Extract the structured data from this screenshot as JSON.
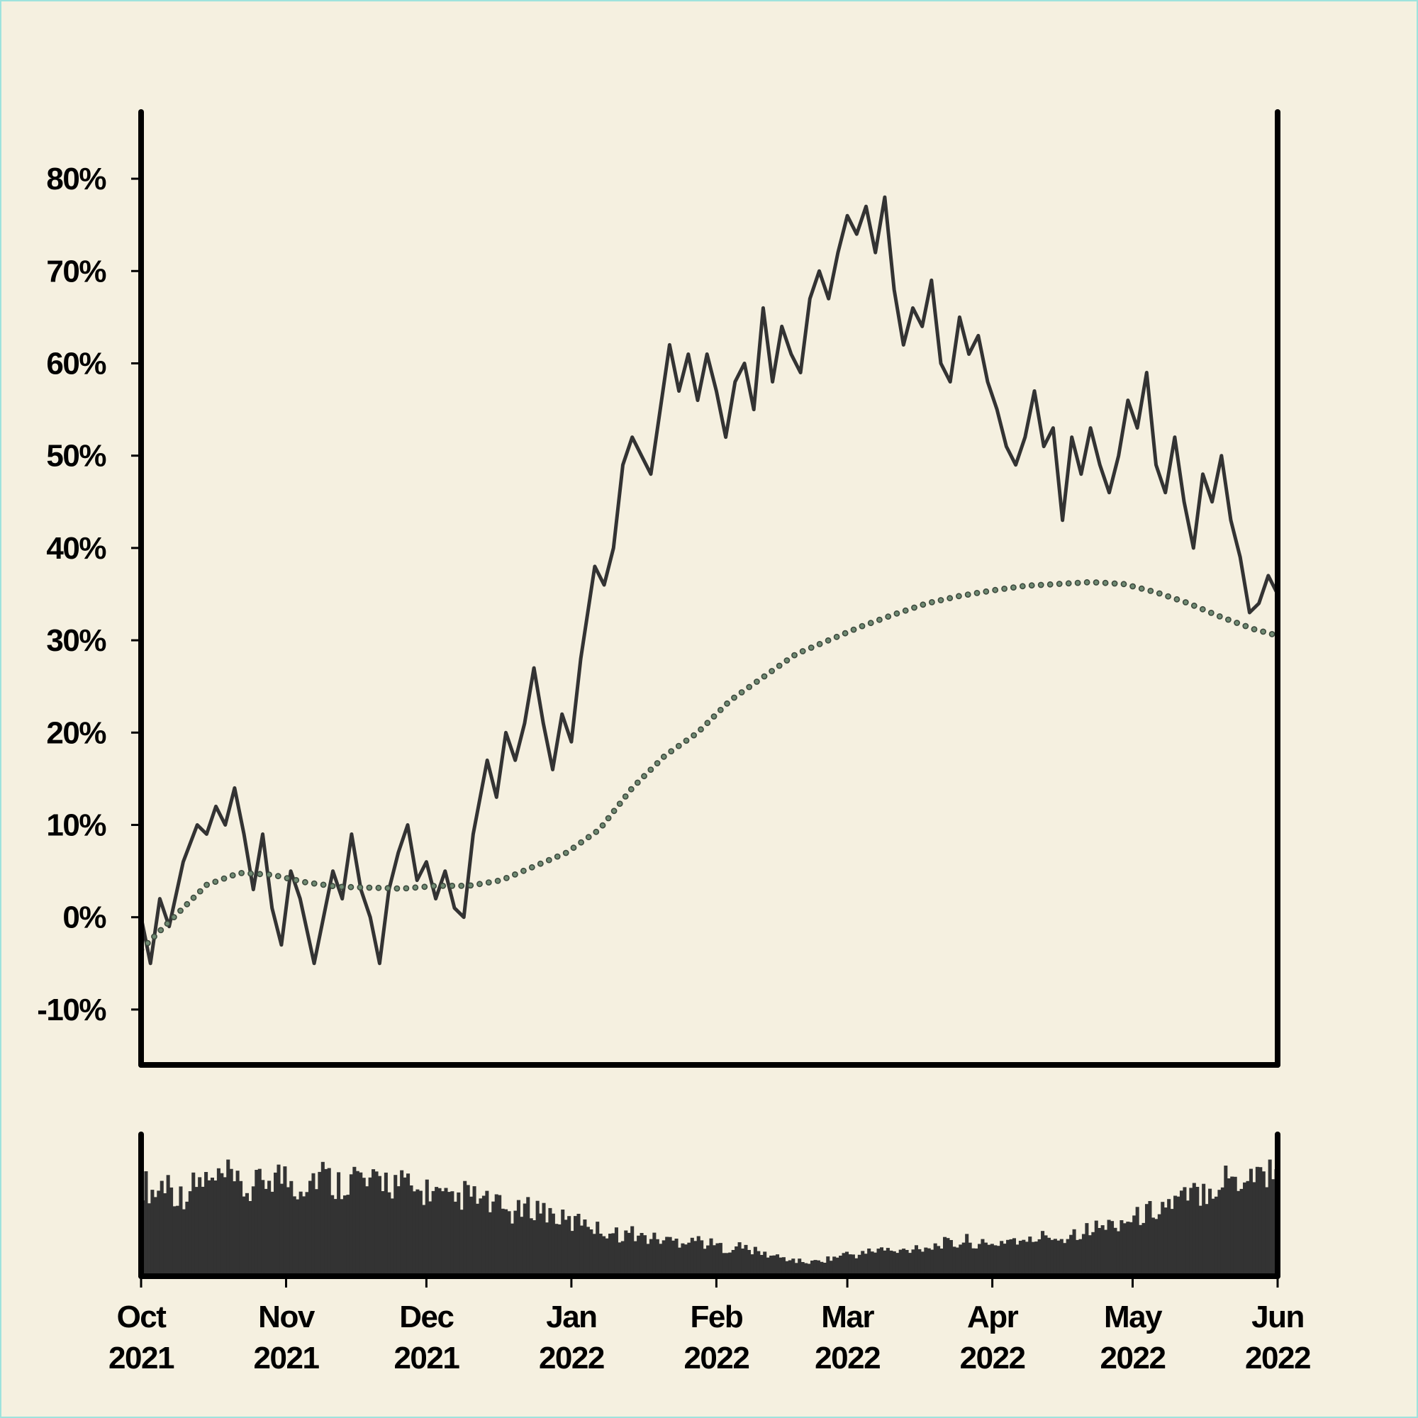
{
  "colors": {
    "background": "#f5f0e0",
    "price_line": "#333333",
    "trend_dots": "#3d4a3e",
    "volume_bars": "#333333",
    "axes": "#000000"
  },
  "chart_data": {
    "type": "line",
    "title": "",
    "xlabel": "",
    "ylabel": "",
    "grid": false,
    "legend": "none",
    "x_range": [
      "2021-10-01",
      "2022-06-01"
    ],
    "ylim": [
      -0.16,
      0.84
    ],
    "y_tick_values": [
      -0.1,
      0,
      0.1,
      0.2,
      0.3,
      0.4,
      0.5,
      0.6,
      0.7,
      0.8
    ],
    "y_tick_labels": [
      "-10%",
      "0%",
      "10%",
      "20%",
      "30%",
      "40%",
      "50%",
      "60%",
      "70%",
      "80%"
    ],
    "x_ticks": [
      {
        "date": "2021-10-01",
        "month": "Oct",
        "year": "2021"
      },
      {
        "date": "2021-11-01",
        "month": "Nov",
        "year": "2021"
      },
      {
        "date": "2021-12-01",
        "month": "Dec",
        "year": "2021"
      },
      {
        "date": "2022-01-01",
        "month": "Jan",
        "year": "2022"
      },
      {
        "date": "2022-02-01",
        "month": "Feb",
        "year": "2022"
      },
      {
        "date": "2022-03-01",
        "month": "Mar",
        "year": "2022"
      },
      {
        "date": "2022-04-01",
        "month": "Apr",
        "year": "2022"
      },
      {
        "date": "2022-05-01",
        "month": "May",
        "year": "2022"
      },
      {
        "date": "2022-06-01",
        "month": "Jun",
        "year": "2022"
      }
    ],
    "series": [
      {
        "style": "solid line",
        "points": [
          [
            "2021-10-01",
            0.0
          ],
          [
            "2021-10-03",
            -0.05
          ],
          [
            "2021-10-05",
            0.02
          ],
          [
            "2021-10-07",
            -0.01
          ],
          [
            "2021-10-10",
            0.06
          ],
          [
            "2021-10-13",
            0.1
          ],
          [
            "2021-10-15",
            0.09
          ],
          [
            "2021-10-17",
            0.12
          ],
          [
            "2021-10-19",
            0.1
          ],
          [
            "2021-10-21",
            0.14
          ],
          [
            "2021-10-23",
            0.09
          ],
          [
            "2021-10-25",
            0.03
          ],
          [
            "2021-10-27",
            0.09
          ],
          [
            "2021-10-29",
            0.01
          ],
          [
            "2021-10-31",
            -0.03
          ],
          [
            "2021-11-02",
            0.05
          ],
          [
            "2021-11-04",
            0.02
          ],
          [
            "2021-11-07",
            -0.05
          ],
          [
            "2021-11-09",
            0.0
          ],
          [
            "2021-11-11",
            0.05
          ],
          [
            "2021-11-13",
            0.02
          ],
          [
            "2021-11-15",
            0.09
          ],
          [
            "2021-11-17",
            0.03
          ],
          [
            "2021-11-19",
            0.0
          ],
          [
            "2021-11-21",
            -0.05
          ],
          [
            "2021-11-23",
            0.03
          ],
          [
            "2021-11-25",
            0.07
          ],
          [
            "2021-11-27",
            0.1
          ],
          [
            "2021-11-29",
            0.04
          ],
          [
            "2021-12-01",
            0.06
          ],
          [
            "2021-12-03",
            0.02
          ],
          [
            "2021-12-05",
            0.05
          ],
          [
            "2021-12-07",
            0.01
          ],
          [
            "2021-12-09",
            0.0
          ],
          [
            "2021-12-11",
            0.09
          ],
          [
            "2021-12-14",
            0.17
          ],
          [
            "2021-12-16",
            0.13
          ],
          [
            "2021-12-18",
            0.2
          ],
          [
            "2021-12-20",
            0.17
          ],
          [
            "2021-12-22",
            0.21
          ],
          [
            "2021-12-24",
            0.27
          ],
          [
            "2021-12-26",
            0.21
          ],
          [
            "2021-12-28",
            0.16
          ],
          [
            "2021-12-30",
            0.22
          ],
          [
            "2022-01-01",
            0.19
          ],
          [
            "2022-01-03",
            0.28
          ],
          [
            "2022-01-06",
            0.38
          ],
          [
            "2022-01-08",
            0.36
          ],
          [
            "2022-01-10",
            0.4
          ],
          [
            "2022-01-12",
            0.49
          ],
          [
            "2022-01-14",
            0.52
          ],
          [
            "2022-01-16",
            0.5
          ],
          [
            "2022-01-18",
            0.48
          ],
          [
            "2022-01-20",
            0.55
          ],
          [
            "2022-01-22",
            0.62
          ],
          [
            "2022-01-24",
            0.57
          ],
          [
            "2022-01-26",
            0.61
          ],
          [
            "2022-01-28",
            0.56
          ],
          [
            "2022-01-30",
            0.61
          ],
          [
            "2022-02-01",
            0.57
          ],
          [
            "2022-02-03",
            0.52
          ],
          [
            "2022-02-05",
            0.58
          ],
          [
            "2022-02-07",
            0.6
          ],
          [
            "2022-02-09",
            0.55
          ],
          [
            "2022-02-11",
            0.66
          ],
          [
            "2022-02-13",
            0.58
          ],
          [
            "2022-02-15",
            0.64
          ],
          [
            "2022-02-17",
            0.61
          ],
          [
            "2022-02-19",
            0.59
          ],
          [
            "2022-02-21",
            0.67
          ],
          [
            "2022-02-23",
            0.7
          ],
          [
            "2022-02-25",
            0.67
          ],
          [
            "2022-02-27",
            0.72
          ],
          [
            "2022-03-01",
            0.76
          ],
          [
            "2022-03-03",
            0.74
          ],
          [
            "2022-03-05",
            0.77
          ],
          [
            "2022-03-07",
            0.72
          ],
          [
            "2022-03-09",
            0.78
          ],
          [
            "2022-03-11",
            0.68
          ],
          [
            "2022-03-13",
            0.62
          ],
          [
            "2022-03-15",
            0.66
          ],
          [
            "2022-03-17",
            0.64
          ],
          [
            "2022-03-19",
            0.69
          ],
          [
            "2022-03-21",
            0.6
          ],
          [
            "2022-03-23",
            0.58
          ],
          [
            "2022-03-25",
            0.65
          ],
          [
            "2022-03-27",
            0.61
          ],
          [
            "2022-03-29",
            0.63
          ],
          [
            "2022-03-31",
            0.58
          ],
          [
            "2022-04-02",
            0.55
          ],
          [
            "2022-04-04",
            0.51
          ],
          [
            "2022-04-06",
            0.49
          ],
          [
            "2022-04-08",
            0.52
          ],
          [
            "2022-04-10",
            0.57
          ],
          [
            "2022-04-12",
            0.51
          ],
          [
            "2022-04-14",
            0.53
          ],
          [
            "2022-04-16",
            0.43
          ],
          [
            "2022-04-18",
            0.52
          ],
          [
            "2022-04-20",
            0.48
          ],
          [
            "2022-04-22",
            0.53
          ],
          [
            "2022-04-24",
            0.49
          ],
          [
            "2022-04-26",
            0.46
          ],
          [
            "2022-04-28",
            0.5
          ],
          [
            "2022-04-30",
            0.56
          ],
          [
            "2022-05-02",
            0.53
          ],
          [
            "2022-05-04",
            0.59
          ],
          [
            "2022-05-06",
            0.49
          ],
          [
            "2022-05-08",
            0.46
          ],
          [
            "2022-05-10",
            0.52
          ],
          [
            "2022-05-12",
            0.45
          ],
          [
            "2022-05-14",
            0.4
          ],
          [
            "2022-05-16",
            0.48
          ],
          [
            "2022-05-18",
            0.45
          ],
          [
            "2022-05-20",
            0.5
          ],
          [
            "2022-05-22",
            0.43
          ],
          [
            "2022-05-24",
            0.39
          ],
          [
            "2022-05-26",
            0.33
          ],
          [
            "2022-05-28",
            0.34
          ],
          [
            "2022-05-30",
            0.37
          ],
          [
            "2022-06-01",
            0.35
          ]
        ]
      },
      {
        "style": "dotted line",
        "points": [
          [
            "2021-10-01",
            -0.035
          ],
          [
            "2021-10-08",
            0.0
          ],
          [
            "2021-10-15",
            0.035
          ],
          [
            "2021-10-22",
            0.048
          ],
          [
            "2021-10-29",
            0.046
          ],
          [
            "2021-11-05",
            0.038
          ],
          [
            "2021-11-12",
            0.033
          ],
          [
            "2021-11-19",
            0.032
          ],
          [
            "2021-11-26",
            0.031
          ],
          [
            "2021-12-03",
            0.034
          ],
          [
            "2021-12-10",
            0.034
          ],
          [
            "2021-12-17",
            0.04
          ],
          [
            "2021-12-24",
            0.055
          ],
          [
            "2021-12-31",
            0.07
          ],
          [
            "2022-01-07",
            0.095
          ],
          [
            "2022-01-14",
            0.14
          ],
          [
            "2022-01-21",
            0.175
          ],
          [
            "2022-01-28",
            0.2
          ],
          [
            "2022-02-04",
            0.235
          ],
          [
            "2022-02-11",
            0.26
          ],
          [
            "2022-02-18",
            0.285
          ],
          [
            "2022-02-25",
            0.3
          ],
          [
            "2022-03-04",
            0.315
          ],
          [
            "2022-03-11",
            0.328
          ],
          [
            "2022-03-18",
            0.34
          ],
          [
            "2022-03-25",
            0.348
          ],
          [
            "2022-04-01",
            0.354
          ],
          [
            "2022-04-08",
            0.359
          ],
          [
            "2022-04-15",
            0.361
          ],
          [
            "2022-04-22",
            0.363
          ],
          [
            "2022-04-29",
            0.361
          ],
          [
            "2022-05-06",
            0.352
          ],
          [
            "2022-05-13",
            0.34
          ],
          [
            "2022-05-20",
            0.325
          ],
          [
            "2022-05-27",
            0.312
          ],
          [
            "2022-06-01",
            0.305
          ]
        ]
      }
    ],
    "volume": {
      "type": "bar",
      "relative_levels": [
        0.75,
        0.66,
        0.78,
        0.63,
        0.7,
        0.77,
        0.74,
        0.8,
        0.71,
        0.68,
        0.76,
        0.82,
        0.79,
        0.72,
        0.78,
        0.84,
        0.73,
        0.77,
        0.81,
        0.7,
        0.79,
        0.75,
        0.73,
        0.66,
        0.7,
        0.63,
        0.58,
        0.66,
        0.62,
        0.58,
        0.55,
        0.5,
        0.53,
        0.56,
        0.51,
        0.46,
        0.42,
        0.47,
        0.38,
        0.36,
        0.33,
        0.35,
        0.31,
        0.3,
        0.29,
        0.28,
        0.31,
        0.27,
        0.25,
        0.22,
        0.24,
        0.21,
        0.18,
        0.16,
        0.14,
        0.12,
        0.11,
        0.13,
        0.15,
        0.18,
        0.17,
        0.2,
        0.22,
        0.19,
        0.21,
        0.24,
        0.23,
        0.27,
        0.25,
        0.29,
        0.26,
        0.24,
        0.28,
        0.3,
        0.26,
        0.31,
        0.33,
        0.3,
        0.35,
        0.37,
        0.39,
        0.41,
        0.44,
        0.46,
        0.5,
        0.55,
        0.58,
        0.61,
        0.65,
        0.7,
        0.74,
        0.8,
        0.77,
        0.85,
        0.82,
        0.9
      ]
    }
  }
}
